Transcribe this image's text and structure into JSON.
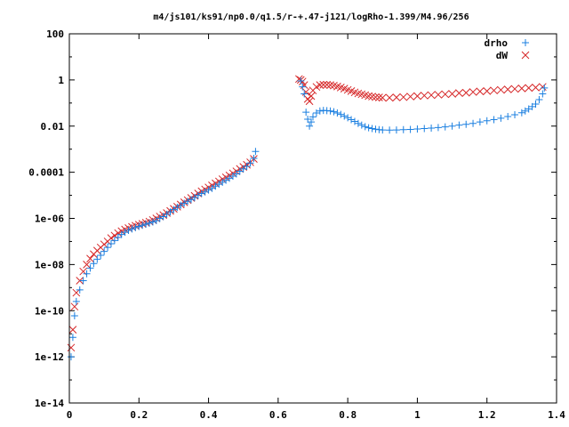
{
  "chart_data": {
    "type": "scatter",
    "title": "m4/js101/ks91/np0.0/q1.5/r-+.47-j121/logRho-1.399/M4.96/256",
    "xlabel": "",
    "ylabel": "",
    "xlim": [
      0,
      1.4
    ],
    "ylim": [
      1e-14,
      100
    ],
    "yscale": "log",
    "grid": false,
    "legend": "top-right",
    "x_ticks": [
      "0",
      "0.2",
      "0.4",
      "0.6",
      "0.8",
      "1",
      "1.2",
      "1.4"
    ],
    "y_ticks": [
      "1e-14",
      "1e-12",
      "1e-10",
      "1e-08",
      "1e-06",
      "0.0001",
      "0.01",
      "1",
      "100"
    ],
    "series": [
      {
        "name": "drho",
        "marker": "plus",
        "color": "#1a7fe0",
        "points": [
          [
            0.005,
            1e-12
          ],
          [
            0.01,
            7e-12
          ],
          [
            0.015,
            6e-11
          ],
          [
            0.02,
            2.5e-10
          ],
          [
            0.03,
            8e-10
          ],
          [
            0.04,
            2e-09
          ],
          [
            0.05,
            4e-09
          ],
          [
            0.06,
            7e-09
          ],
          [
            0.07,
            1.1e-08
          ],
          [
            0.08,
            1.7e-08
          ],
          [
            0.09,
            2.5e-08
          ],
          [
            0.1,
            3.7e-08
          ],
          [
            0.11,
            5.5e-08
          ],
          [
            0.12,
            8e-08
          ],
          [
            0.13,
            1.1e-07
          ],
          [
            0.14,
            1.5e-07
          ],
          [
            0.15,
            2e-07
          ],
          [
            0.16,
            2.5e-07
          ],
          [
            0.17,
            3e-07
          ],
          [
            0.18,
            3.5e-07
          ],
          [
            0.19,
            4e-07
          ],
          [
            0.2,
            4.5e-07
          ],
          [
            0.21,
            5e-07
          ],
          [
            0.22,
            5.6e-07
          ],
          [
            0.23,
            6.2e-07
          ],
          [
            0.24,
            7e-07
          ],
          [
            0.25,
            8e-07
          ],
          [
            0.26,
            1e-06
          ],
          [
            0.27,
            1.2e-06
          ],
          [
            0.28,
            1.5e-06
          ],
          [
            0.29,
            1.9e-06
          ],
          [
            0.3,
            2.4e-06
          ],
          [
            0.31,
            3e-06
          ],
          [
            0.32,
            3.7e-06
          ],
          [
            0.33,
            4.5e-06
          ],
          [
            0.34,
            5.5e-06
          ],
          [
            0.35,
            6.5e-06
          ],
          [
            0.36,
            8e-06
          ],
          [
            0.37,
            1e-05
          ],
          [
            0.38,
            1.2e-05
          ],
          [
            0.39,
            1.4e-05
          ],
          [
            0.4,
            1.7e-05
          ],
          [
            0.41,
            2e-05
          ],
          [
            0.42,
            2.5e-05
          ],
          [
            0.43,
            3e-05
          ],
          [
            0.44,
            3.7e-05
          ],
          [
            0.45,
            4.5e-05
          ],
          [
            0.46,
            5.5e-05
          ],
          [
            0.47,
            6.8e-05
          ],
          [
            0.48,
            8.5e-05
          ],
          [
            0.49,
            0.00011
          ],
          [
            0.5,
            0.00014
          ],
          [
            0.51,
            0.00018
          ],
          [
            0.52,
            0.00025
          ],
          [
            0.53,
            0.0004
          ],
          [
            0.535,
            0.0008
          ],
          [
            0.665,
            0.9
          ],
          [
            0.67,
            0.5
          ],
          [
            0.675,
            0.25
          ],
          [
            0.68,
            0.04
          ],
          [
            0.685,
            0.02
          ],
          [
            0.69,
            0.01
          ],
          [
            0.695,
            0.015
          ],
          [
            0.7,
            0.025
          ],
          [
            0.71,
            0.037
          ],
          [
            0.72,
            0.045
          ],
          [
            0.73,
            0.048
          ],
          [
            0.74,
            0.047
          ],
          [
            0.75,
            0.045
          ],
          [
            0.76,
            0.042
          ],
          [
            0.77,
            0.037
          ],
          [
            0.78,
            0.032
          ],
          [
            0.79,
            0.027
          ],
          [
            0.8,
            0.023
          ],
          [
            0.81,
            0.019
          ],
          [
            0.82,
            0.016
          ],
          [
            0.83,
            0.013
          ],
          [
            0.84,
            0.011
          ],
          [
            0.85,
            0.0095
          ],
          [
            0.86,
            0.0085
          ],
          [
            0.87,
            0.0078
          ],
          [
            0.88,
            0.0073
          ],
          [
            0.89,
            0.007
          ],
          [
            0.9,
            0.0068
          ],
          [
            0.92,
            0.0067
          ],
          [
            0.94,
            0.0068
          ],
          [
            0.96,
            0.007
          ],
          [
            0.98,
            0.0072
          ],
          [
            1.0,
            0.0075
          ],
          [
            1.02,
            0.0078
          ],
          [
            1.04,
            0.0082
          ],
          [
            1.06,
            0.0087
          ],
          [
            1.08,
            0.0093
          ],
          [
            1.1,
            0.01
          ],
          [
            1.12,
            0.011
          ],
          [
            1.14,
            0.012
          ],
          [
            1.16,
            0.013
          ],
          [
            1.18,
            0.015
          ],
          [
            1.2,
            0.017
          ],
          [
            1.22,
            0.019
          ],
          [
            1.24,
            0.022
          ],
          [
            1.26,
            0.026
          ],
          [
            1.28,
            0.031
          ],
          [
            1.3,
            0.038
          ],
          [
            1.31,
            0.045
          ],
          [
            1.32,
            0.055
          ],
          [
            1.33,
            0.07
          ],
          [
            1.34,
            0.09
          ],
          [
            1.35,
            0.14
          ],
          [
            1.36,
            0.25
          ],
          [
            1.365,
            0.45
          ]
        ]
      },
      {
        "name": "dW",
        "marker": "cross",
        "color": "#d62728",
        "points": [
          [
            0.005,
            2.5e-12
          ],
          [
            0.01,
            1.5e-11
          ],
          [
            0.015,
            1.5e-10
          ],
          [
            0.02,
            6e-10
          ],
          [
            0.03,
            2e-09
          ],
          [
            0.04,
            5e-09
          ],
          [
            0.05,
            1e-08
          ],
          [
            0.06,
            1.8e-08
          ],
          [
            0.07,
            2.8e-08
          ],
          [
            0.08,
            4e-08
          ],
          [
            0.09,
            5.5e-08
          ],
          [
            0.1,
            7.5e-08
          ],
          [
            0.11,
            1e-07
          ],
          [
            0.12,
            1.4e-07
          ],
          [
            0.13,
            1.8e-07
          ],
          [
            0.14,
            2.3e-07
          ],
          [
            0.15,
            2.8e-07
          ],
          [
            0.16,
            3.3e-07
          ],
          [
            0.17,
            3.8e-07
          ],
          [
            0.18,
            4.3e-07
          ],
          [
            0.19,
            4.8e-07
          ],
          [
            0.2,
            5.3e-07
          ],
          [
            0.21,
            5.8e-07
          ],
          [
            0.22,
            6.5e-07
          ],
          [
            0.23,
            7.3e-07
          ],
          [
            0.24,
            8.5e-07
          ],
          [
            0.25,
            1e-06
          ],
          [
            0.26,
            1.2e-06
          ],
          [
            0.27,
            1.4e-06
          ],
          [
            0.28,
            1.7e-06
          ],
          [
            0.29,
            2.1e-06
          ],
          [
            0.3,
            2.6e-06
          ],
          [
            0.31,
            3.2e-06
          ],
          [
            0.32,
            4e-06
          ],
          [
            0.33,
            5e-06
          ],
          [
            0.34,
            6.2e-06
          ],
          [
            0.35,
            7.7e-06
          ],
          [
            0.36,
            9.5e-06
          ],
          [
            0.37,
            1.2e-05
          ],
          [
            0.38,
            1.5e-05
          ],
          [
            0.39,
            1.8e-05
          ],
          [
            0.4,
            2.2e-05
          ],
          [
            0.41,
            2.7e-05
          ],
          [
            0.42,
            3.3e-05
          ],
          [
            0.43,
            4e-05
          ],
          [
            0.44,
            5e-05
          ],
          [
            0.45,
            6e-05
          ],
          [
            0.46,
            7.3e-05
          ],
          [
            0.47,
            9e-05
          ],
          [
            0.48,
            0.00011
          ],
          [
            0.49,
            0.00014
          ],
          [
            0.5,
            0.00017
          ],
          [
            0.51,
            0.00021
          ],
          [
            0.52,
            0.00027
          ],
          [
            0.53,
            0.00038
          ],
          [
            0.66,
            1.1
          ],
          [
            0.665,
            1.0
          ],
          [
            0.67,
            0.85
          ],
          [
            0.675,
            0.6
          ],
          [
            0.68,
            0.3
          ],
          [
            0.685,
            0.15
          ],
          [
            0.69,
            0.12
          ],
          [
            0.695,
            0.2
          ],
          [
            0.7,
            0.35
          ],
          [
            0.71,
            0.5
          ],
          [
            0.72,
            0.6
          ],
          [
            0.73,
            0.62
          ],
          [
            0.74,
            0.62
          ],
          [
            0.75,
            0.6
          ],
          [
            0.76,
            0.57
          ],
          [
            0.77,
            0.52
          ],
          [
            0.78,
            0.47
          ],
          [
            0.79,
            0.42
          ],
          [
            0.8,
            0.37
          ],
          [
            0.81,
            0.33
          ],
          [
            0.82,
            0.29
          ],
          [
            0.83,
            0.26
          ],
          [
            0.84,
            0.24
          ],
          [
            0.85,
            0.22
          ],
          [
            0.86,
            0.2
          ],
          [
            0.87,
            0.19
          ],
          [
            0.88,
            0.18
          ],
          [
            0.89,
            0.175
          ],
          [
            0.9,
            0.17
          ],
          [
            0.92,
            0.17
          ],
          [
            0.94,
            0.175
          ],
          [
            0.96,
            0.18
          ],
          [
            0.98,
            0.19
          ],
          [
            1.0,
            0.2
          ],
          [
            1.02,
            0.21
          ],
          [
            1.04,
            0.22
          ],
          [
            1.06,
            0.23
          ],
          [
            1.08,
            0.24
          ],
          [
            1.1,
            0.25
          ],
          [
            1.12,
            0.27
          ],
          [
            1.14,
            0.28
          ],
          [
            1.16,
            0.3
          ],
          [
            1.18,
            0.32
          ],
          [
            1.2,
            0.33
          ],
          [
            1.22,
            0.35
          ],
          [
            1.24,
            0.37
          ],
          [
            1.26,
            0.39
          ],
          [
            1.28,
            0.41
          ],
          [
            1.3,
            0.43
          ],
          [
            1.32,
            0.45
          ],
          [
            1.34,
            0.47
          ],
          [
            1.36,
            0.5
          ]
        ]
      }
    ]
  }
}
